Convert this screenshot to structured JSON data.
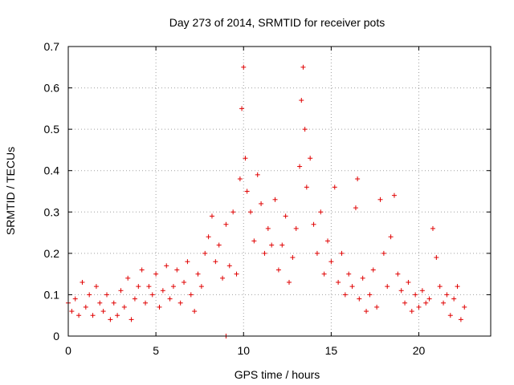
{
  "chart_data": {
    "type": "scatter",
    "title": "Day 273 of 2014, SRMTID for receiver pots",
    "xlabel": "GPS time / hours",
    "ylabel": "SRMTID / TECUs",
    "xlim": [
      0,
      24.1
    ],
    "ylim": [
      0,
      0.7
    ],
    "xticks": [
      0,
      5,
      10,
      15,
      20
    ],
    "yticks": [
      0,
      0.1,
      0.2,
      0.3,
      0.4,
      0.5,
      0.6,
      0.7
    ],
    "grid": true,
    "marker": "plus",
    "color": "#e00000",
    "series": [
      {
        "name": "pots",
        "points": [
          [
            0.0,
            0.08
          ],
          [
            0.2,
            0.06
          ],
          [
            0.4,
            0.09
          ],
          [
            0.6,
            0.05
          ],
          [
            0.8,
            0.13
          ],
          [
            1.0,
            0.07
          ],
          [
            1.2,
            0.1
          ],
          [
            1.4,
            0.05
          ],
          [
            1.6,
            0.12
          ],
          [
            1.8,
            0.08
          ],
          [
            2.0,
            0.06
          ],
          [
            2.2,
            0.1
          ],
          [
            2.4,
            0.04
          ],
          [
            2.6,
            0.08
          ],
          [
            2.8,
            0.05
          ],
          [
            3.0,
            0.11
          ],
          [
            3.2,
            0.07
          ],
          [
            3.4,
            0.14
          ],
          [
            3.6,
            0.04
          ],
          [
            3.8,
            0.09
          ],
          [
            4.0,
            0.12
          ],
          [
            4.2,
            0.16
          ],
          [
            4.4,
            0.08
          ],
          [
            4.6,
            0.12
          ],
          [
            4.8,
            0.1
          ],
          [
            5.0,
            0.15
          ],
          [
            5.2,
            0.07
          ],
          [
            5.4,
            0.11
          ],
          [
            5.6,
            0.17
          ],
          [
            5.8,
            0.09
          ],
          [
            6.0,
            0.12
          ],
          [
            6.2,
            0.16
          ],
          [
            6.4,
            0.08
          ],
          [
            6.6,
            0.13
          ],
          [
            6.8,
            0.18
          ],
          [
            7.0,
            0.1
          ],
          [
            7.2,
            0.06
          ],
          [
            7.4,
            0.15
          ],
          [
            7.6,
            0.12
          ],
          [
            7.8,
            0.2
          ],
          [
            8.0,
            0.24
          ],
          [
            8.2,
            0.29
          ],
          [
            8.4,
            0.18
          ],
          [
            8.6,
            0.22
          ],
          [
            8.8,
            0.14
          ],
          [
            9.0,
            0.27
          ],
          [
            9.2,
            0.17
          ],
          [
            9.4,
            0.3
          ],
          [
            9.6,
            0.15
          ],
          [
            9.8,
            0.38
          ],
          [
            9.9,
            0.55
          ],
          [
            10.0,
            0.65
          ],
          [
            10.1,
            0.43
          ],
          [
            10.2,
            0.35
          ],
          [
            10.4,
            0.3
          ],
          [
            10.6,
            0.23
          ],
          [
            10.8,
            0.39
          ],
          [
            11.0,
            0.32
          ],
          [
            11.2,
            0.2
          ],
          [
            11.4,
            0.26
          ],
          [
            11.6,
            0.22
          ],
          [
            11.8,
            0.33
          ],
          [
            12.0,
            0.16
          ],
          [
            12.2,
            0.22
          ],
          [
            12.4,
            0.29
          ],
          [
            12.6,
            0.13
          ],
          [
            12.8,
            0.19
          ],
          [
            13.0,
            0.26
          ],
          [
            13.2,
            0.41
          ],
          [
            13.3,
            0.57
          ],
          [
            13.4,
            0.65
          ],
          [
            13.5,
            0.5
          ],
          [
            13.6,
            0.36
          ],
          [
            13.8,
            0.43
          ],
          [
            14.0,
            0.27
          ],
          [
            14.2,
            0.2
          ],
          [
            14.4,
            0.3
          ],
          [
            14.6,
            0.15
          ],
          [
            14.8,
            0.23
          ],
          [
            15.0,
            0.18
          ],
          [
            15.2,
            0.36
          ],
          [
            15.4,
            0.13
          ],
          [
            15.6,
            0.2
          ],
          [
            15.8,
            0.1
          ],
          [
            16.0,
            0.15
          ],
          [
            16.2,
            0.12
          ],
          [
            16.4,
            0.31
          ],
          [
            16.5,
            0.38
          ],
          [
            16.6,
            0.09
          ],
          [
            16.8,
            0.14
          ],
          [
            17.0,
            0.06
          ],
          [
            17.2,
            0.1
          ],
          [
            17.4,
            0.16
          ],
          [
            17.6,
            0.07
          ],
          [
            17.8,
            0.33
          ],
          [
            18.0,
            0.2
          ],
          [
            18.2,
            0.12
          ],
          [
            18.4,
            0.24
          ],
          [
            18.6,
            0.34
          ],
          [
            18.8,
            0.15
          ],
          [
            19.0,
            0.11
          ],
          [
            19.2,
            0.08
          ],
          [
            19.4,
            0.13
          ],
          [
            19.6,
            0.06
          ],
          [
            19.8,
            0.1
          ],
          [
            20.0,
            0.07
          ],
          [
            20.2,
            0.11
          ],
          [
            20.4,
            0.08
          ],
          [
            20.6,
            0.09
          ],
          [
            20.8,
            0.26
          ],
          [
            21.0,
            0.19
          ],
          [
            21.2,
            0.12
          ],
          [
            21.4,
            0.08
          ],
          [
            21.6,
            0.1
          ],
          [
            21.8,
            0.05
          ],
          [
            22.0,
            0.09
          ],
          [
            22.2,
            0.12
          ],
          [
            22.4,
            0.04
          ],
          [
            22.6,
            0.07
          ],
          [
            9.0,
            0.0
          ]
        ]
      }
    ]
  }
}
